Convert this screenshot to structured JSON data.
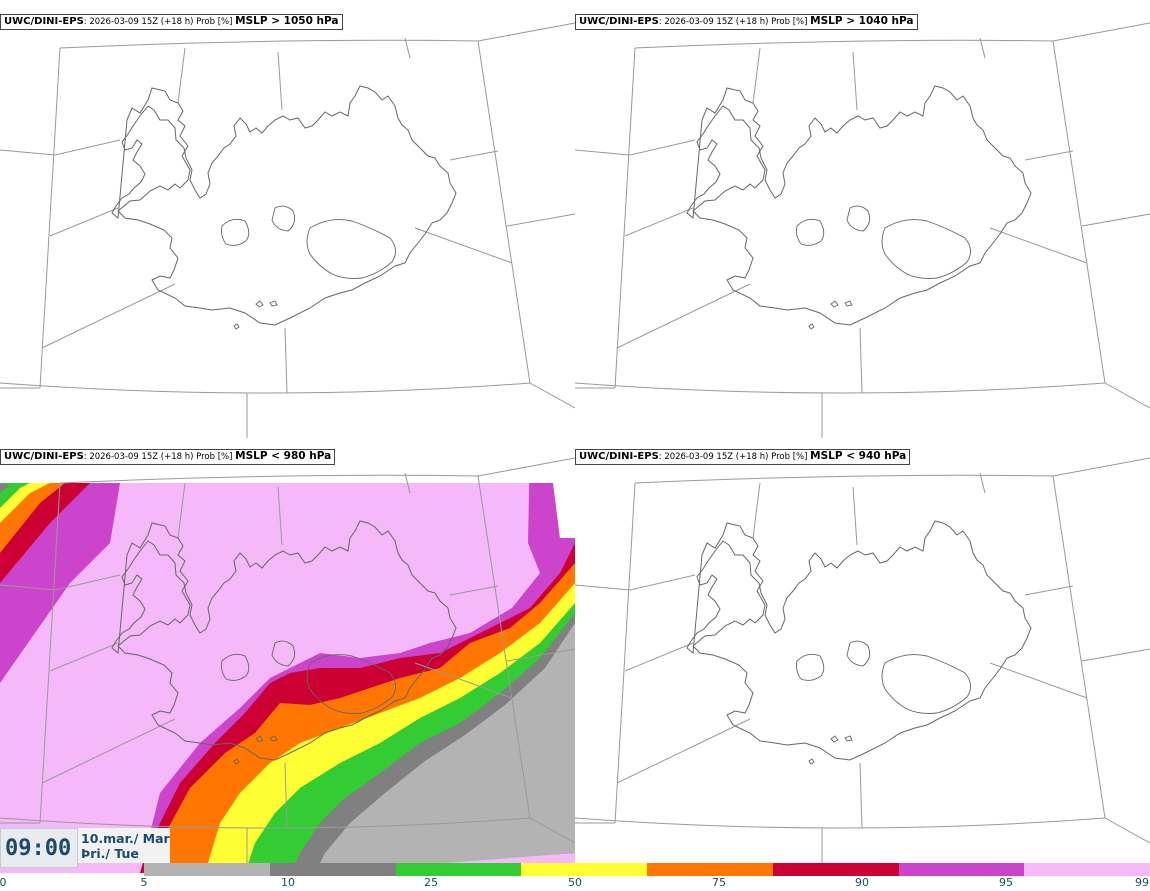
{
  "panels": [
    {
      "model": "UWC/DINI-EPS",
      "meta": ": 2026-03-09 15Z (+18 h) Prob [%] ",
      "param": "MSLP > 1050 hPa"
    },
    {
      "model": "UWC/DINI-EPS",
      "meta": ": 2026-03-09 15Z (+18 h) Prob [%] ",
      "param": "MSLP > 1040 hPa"
    },
    {
      "model": "UWC/DINI-EPS",
      "meta": ": 2026-03-09 15Z (+18 h) Prob [%] ",
      "param": "MSLP < 980 hPa"
    },
    {
      "model": "UWC/DINI-EPS",
      "meta": ": 2026-03-09 15Z (+18 h) Prob [%] ",
      "param": "MSLP < 940 hPa"
    }
  ],
  "valid_time": {
    "time": "09:00",
    "date_line1": "10.mar./ Mar",
    "date_line2": "Þri./ Tue"
  },
  "legend": {
    "ticks": [
      "0",
      "5",
      "10",
      "25",
      "50",
      "75",
      "90",
      "95",
      "99"
    ],
    "colors": [
      "#b3b3b3",
      "#808080",
      "#33cc33",
      "#ffff33",
      "#ff7700",
      "#cc0033",
      "#cc44cc",
      "#f5b8f8"
    ]
  },
  "colors": {
    "coast": "#666666",
    "grid": "#999999",
    "p90_100": "#f5b8f8",
    "p75_90": "#cc44cc",
    "p50_75": "#cc0033",
    "p25_50": "#ff7700",
    "p10_25": "#ffff33",
    "p5_10": "#33cc33",
    "p1_5": "#808080",
    "p0_1": "#b3b3b3"
  }
}
